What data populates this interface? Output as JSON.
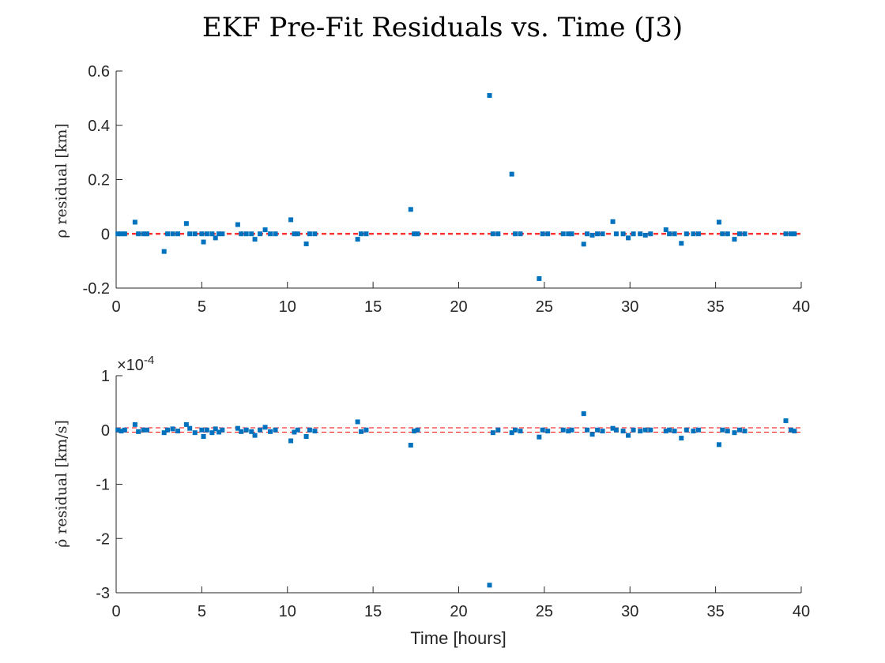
{
  "figure": {
    "title": "EKF Pre-Fit Residuals vs. Time (J3)",
    "xlabel": "Time [hours]"
  },
  "colors": {
    "points": "#0072BD",
    "bounds": "#FF0000",
    "axes": "#262626"
  },
  "chart_data": [
    {
      "type": "scatter",
      "ylabel": "ρ residual [km]",
      "xlim": [
        0,
        40
      ],
      "ylim": [
        -0.2,
        0.6
      ],
      "xticks": [
        "0",
        "5",
        "10",
        "15",
        "20",
        "25",
        "30",
        "35",
        "40"
      ],
      "yticks": [
        "-0.2",
        "0",
        "0.2",
        "0.4",
        "0.6"
      ],
      "xtick_values": [
        0,
        5,
        10,
        15,
        20,
        25,
        30,
        35,
        40
      ],
      "ytick_values": [
        -0.2,
        0,
        0.2,
        0.4,
        0.6
      ],
      "bounds": [
        0.002,
        -0.002
      ],
      "points": [
        [
          0.1,
          0.0
        ],
        [
          0.3,
          0.0
        ],
        [
          0.5,
          0.0
        ],
        [
          1.1,
          0.043
        ],
        [
          1.3,
          0.0
        ],
        [
          1.6,
          0.0
        ],
        [
          1.8,
          0.0
        ],
        [
          2.8,
          -0.065
        ],
        [
          3.0,
          0.0
        ],
        [
          3.3,
          0.0
        ],
        [
          3.6,
          0.0
        ],
        [
          4.1,
          0.038
        ],
        [
          4.3,
          0.0
        ],
        [
          4.6,
          0.0
        ],
        [
          5.0,
          0.0
        ],
        [
          5.1,
          -0.03
        ],
        [
          5.3,
          0.0
        ],
        [
          5.6,
          0.0
        ],
        [
          5.8,
          -0.015
        ],
        [
          6.0,
          0.0
        ],
        [
          6.2,
          0.0
        ],
        [
          7.1,
          0.034
        ],
        [
          7.3,
          0.0
        ],
        [
          7.6,
          0.0
        ],
        [
          7.9,
          0.0
        ],
        [
          8.1,
          -0.02
        ],
        [
          8.4,
          0.0
        ],
        [
          8.7,
          0.015
        ],
        [
          9.0,
          0.0
        ],
        [
          9.3,
          0.0
        ],
        [
          10.2,
          0.052
        ],
        [
          10.4,
          0.0
        ],
        [
          10.6,
          0.0
        ],
        [
          11.1,
          -0.037
        ],
        [
          11.3,
          0.0
        ],
        [
          11.6,
          0.0
        ],
        [
          14.1,
          -0.02
        ],
        [
          14.3,
          0.0
        ],
        [
          14.6,
          0.0
        ],
        [
          17.2,
          0.09
        ],
        [
          17.4,
          0.0
        ],
        [
          17.6,
          0.0
        ],
        [
          21.8,
          0.51
        ],
        [
          22.0,
          0.0
        ],
        [
          22.3,
          0.0
        ],
        [
          23.1,
          0.22
        ],
        [
          23.3,
          0.0
        ],
        [
          23.6,
          0.0
        ],
        [
          24.7,
          -0.165
        ],
        [
          24.9,
          0.0
        ],
        [
          25.2,
          0.0
        ],
        [
          26.1,
          0.0
        ],
        [
          26.4,
          0.0
        ],
        [
          26.6,
          0.0
        ],
        [
          27.3,
          -0.038
        ],
        [
          27.5,
          0.0
        ],
        [
          27.8,
          -0.005
        ],
        [
          28.1,
          0.0
        ],
        [
          28.4,
          0.0
        ],
        [
          29.0,
          0.045
        ],
        [
          29.2,
          0.0
        ],
        [
          29.6,
          0.0
        ],
        [
          29.9,
          -0.015
        ],
        [
          30.2,
          0.0
        ],
        [
          30.6,
          0.0
        ],
        [
          30.9,
          -0.005
        ],
        [
          31.2,
          0.0
        ],
        [
          32.1,
          0.015
        ],
        [
          32.3,
          0.0
        ],
        [
          32.6,
          0.0
        ],
        [
          33.0,
          -0.035
        ],
        [
          33.3,
          0.0
        ],
        [
          33.7,
          0.0
        ],
        [
          34.0,
          0.0
        ],
        [
          35.2,
          0.043
        ],
        [
          35.4,
          0.0
        ],
        [
          35.7,
          0.0
        ],
        [
          36.1,
          -0.02
        ],
        [
          36.4,
          0.0
        ],
        [
          36.7,
          0.0
        ],
        [
          39.1,
          0.0
        ],
        [
          39.4,
          0.0
        ],
        [
          39.6,
          0.0
        ]
      ]
    },
    {
      "type": "scatter",
      "ylabel": "ρ̇ residual [km/s]",
      "multiplier": "×10",
      "exponent": "-4",
      "xlim": [
        0,
        40
      ],
      "ylim": [
        -3,
        1
      ],
      "xticks": [
        "0",
        "5",
        "10",
        "15",
        "20",
        "25",
        "30",
        "35",
        "40"
      ],
      "yticks": [
        "-3",
        "-2",
        "-1",
        "0",
        "1"
      ],
      "xtick_values": [
        0,
        5,
        10,
        15,
        20,
        25,
        30,
        35,
        40
      ],
      "ytick_values": [
        -3,
        -2,
        -1,
        0,
        1
      ],
      "bounds": [
        0.04,
        -0.04
      ],
      "points": [
        [
          0.1,
          0.0
        ],
        [
          0.3,
          -0.02
        ],
        [
          0.5,
          0.0
        ],
        [
          1.1,
          0.1
        ],
        [
          1.3,
          -0.03
        ],
        [
          1.6,
          0.0
        ],
        [
          1.8,
          0.0
        ],
        [
          2.8,
          -0.05
        ],
        [
          3.0,
          0.0
        ],
        [
          3.3,
          0.02
        ],
        [
          3.6,
          -0.02
        ],
        [
          4.1,
          0.1
        ],
        [
          4.3,
          0.03
        ],
        [
          4.6,
          -0.05
        ],
        [
          5.0,
          0.0
        ],
        [
          5.1,
          -0.12
        ],
        [
          5.3,
          0.0
        ],
        [
          5.6,
          -0.05
        ],
        [
          5.8,
          0.02
        ],
        [
          6.0,
          -0.04
        ],
        [
          6.2,
          0.0
        ],
        [
          7.1,
          0.03
        ],
        [
          7.3,
          -0.03
        ],
        [
          7.6,
          0.0
        ],
        [
          7.9,
          -0.03
        ],
        [
          8.1,
          -0.1
        ],
        [
          8.4,
          0.0
        ],
        [
          8.7,
          0.05
        ],
        [
          9.0,
          -0.03
        ],
        [
          9.3,
          0.0
        ],
        [
          10.2,
          -0.2
        ],
        [
          10.4,
          -0.04
        ],
        [
          10.6,
          0.0
        ],
        [
          11.1,
          -0.12
        ],
        [
          11.3,
          0.0
        ],
        [
          11.6,
          -0.02
        ],
        [
          14.1,
          0.15
        ],
        [
          14.3,
          -0.03
        ],
        [
          14.6,
          0.0
        ],
        [
          17.2,
          -0.28
        ],
        [
          17.4,
          -0.02
        ],
        [
          17.6,
          0.0
        ],
        [
          21.8,
          -2.86
        ],
        [
          22.0,
          -0.05
        ],
        [
          22.3,
          0.0
        ],
        [
          23.1,
          -0.05
        ],
        [
          23.3,
          0.0
        ],
        [
          23.6,
          -0.02
        ],
        [
          24.7,
          -0.13
        ],
        [
          24.9,
          0.0
        ],
        [
          25.2,
          -0.02
        ],
        [
          26.1,
          0.0
        ],
        [
          26.4,
          -0.02
        ],
        [
          26.6,
          0.0
        ],
        [
          27.3,
          0.3
        ],
        [
          27.5,
          0.0
        ],
        [
          27.8,
          -0.08
        ],
        [
          28.1,
          0.0
        ],
        [
          28.4,
          -0.02
        ],
        [
          29.0,
          0.03
        ],
        [
          29.2,
          0.0
        ],
        [
          29.6,
          -0.02
        ],
        [
          29.9,
          -0.1
        ],
        [
          30.2,
          0.0
        ],
        [
          30.6,
          -0.02
        ],
        [
          30.9,
          0.0
        ],
        [
          31.2,
          0.0
        ],
        [
          32.1,
          -0.02
        ],
        [
          32.3,
          0.0
        ],
        [
          32.6,
          -0.02
        ],
        [
          33.0,
          -0.15
        ],
        [
          33.3,
          0.0
        ],
        [
          33.7,
          -0.02
        ],
        [
          34.0,
          0.0
        ],
        [
          35.2,
          -0.27
        ],
        [
          35.4,
          0.0
        ],
        [
          35.7,
          -0.02
        ],
        [
          36.1,
          -0.05
        ],
        [
          36.4,
          0.0
        ],
        [
          36.7,
          -0.02
        ],
        [
          39.1,
          0.17
        ],
        [
          39.4,
          0.0
        ],
        [
          39.6,
          -0.02
        ]
      ]
    }
  ]
}
